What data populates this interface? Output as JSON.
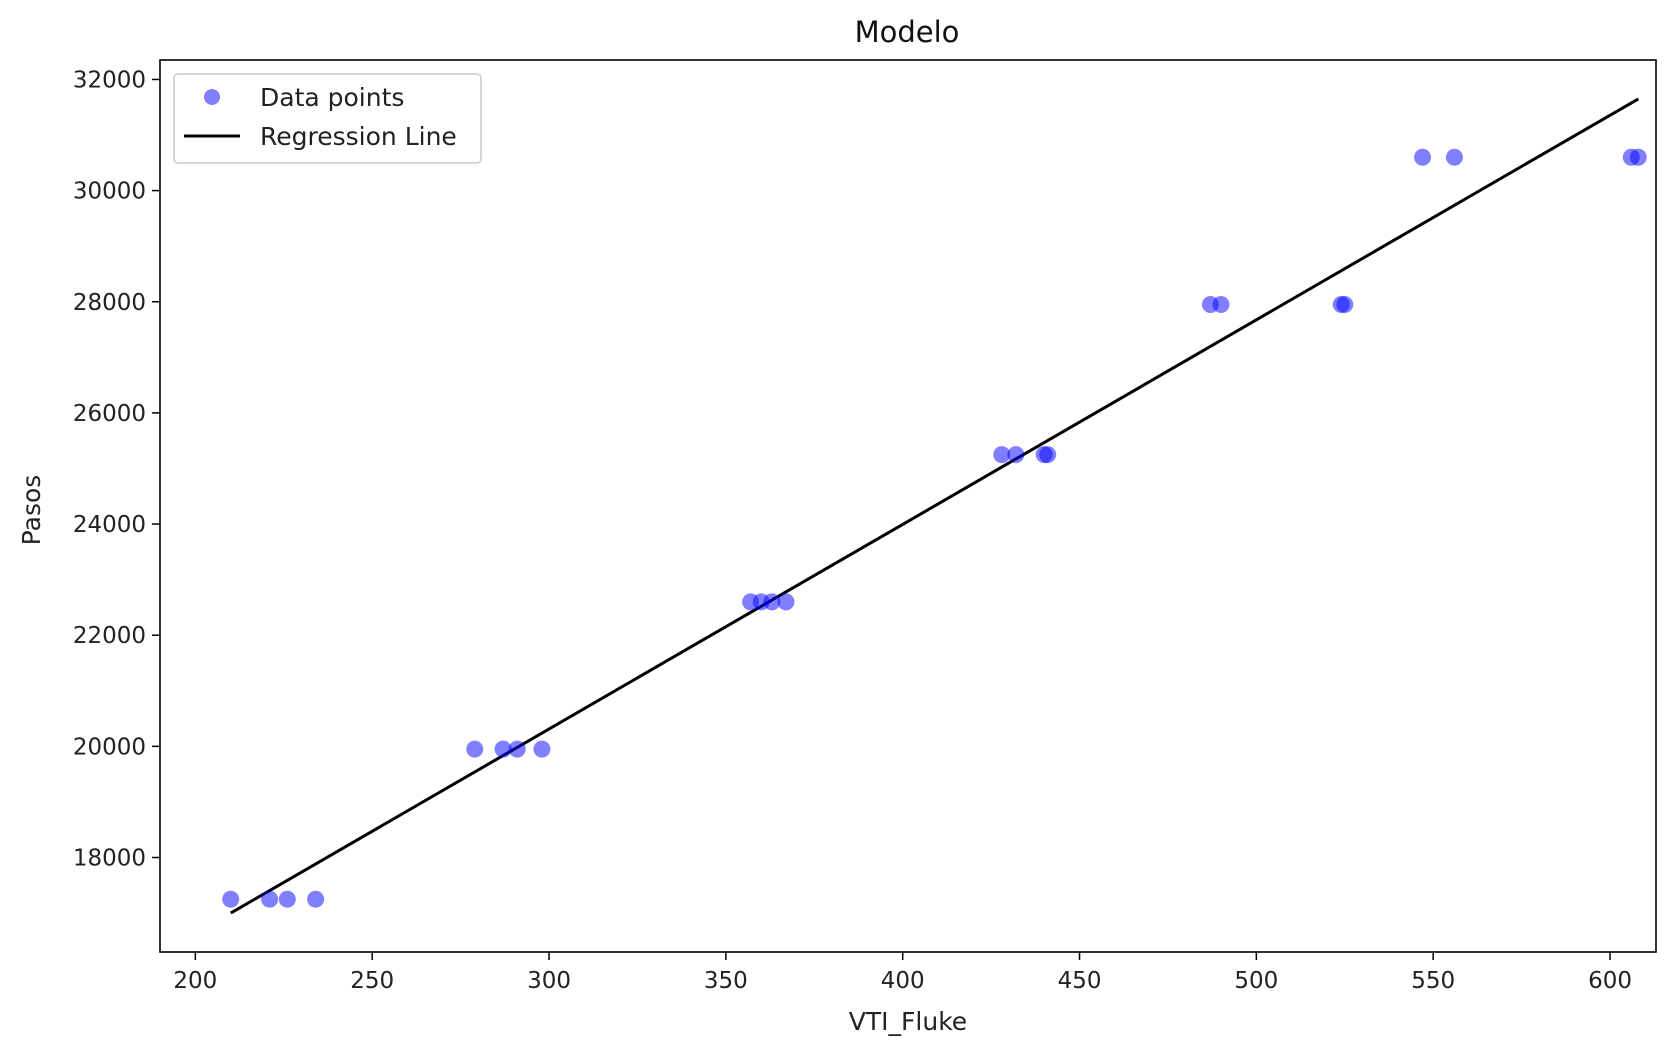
{
  "chart_data": {
    "type": "scatter",
    "title": "Modelo",
    "xlabel": "VTI_Fluke",
    "ylabel": "Pasos",
    "xlim": [
      190,
      613
    ],
    "ylim": [
      16300,
      32350
    ],
    "xticks": [
      200,
      250,
      300,
      350,
      400,
      450,
      500,
      550,
      600
    ],
    "yticks": [
      18000,
      20000,
      22000,
      24000,
      26000,
      28000,
      30000,
      32000
    ],
    "grid": false,
    "legend": {
      "location": "upper-left",
      "entries": [
        "Data points",
        "Regression Line"
      ]
    },
    "series": [
      {
        "name": "Data points",
        "kind": "scatter",
        "color": "#0000ff",
        "alpha": 0.5,
        "points": [
          [
            210,
            17250
          ],
          [
            221,
            17250
          ],
          [
            226,
            17250
          ],
          [
            234,
            17250
          ],
          [
            279,
            19950
          ],
          [
            287,
            19950
          ],
          [
            291,
            19950
          ],
          [
            298,
            19950
          ],
          [
            357,
            22600
          ],
          [
            360,
            22600
          ],
          [
            363,
            22600
          ],
          [
            367,
            22600
          ],
          [
            428,
            25250
          ],
          [
            432,
            25250
          ],
          [
            440,
            25250
          ],
          [
            441,
            25250
          ],
          [
            487,
            27950
          ],
          [
            490,
            27950
          ],
          [
            524,
            27950
          ],
          [
            525,
            27950
          ],
          [
            547,
            30600
          ],
          [
            556,
            30600
          ],
          [
            606,
            30600
          ],
          [
            608,
            30600
          ]
        ]
      },
      {
        "name": "Regression Line",
        "kind": "line",
        "color": "#000000",
        "points": [
          [
            210,
            17000
          ],
          [
            608,
            31650
          ]
        ]
      }
    ]
  }
}
